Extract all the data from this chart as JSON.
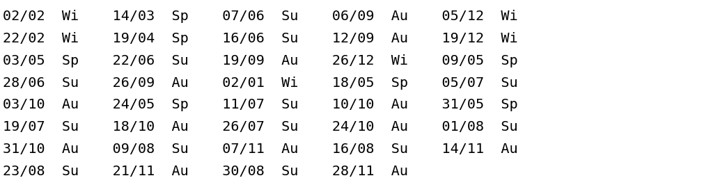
{
  "background_color": "#ffffff",
  "text_color": "#000000",
  "font_family": "monospace",
  "font_size": 14.5,
  "figsize": [
    10.11,
    2.66
  ],
  "dpi": 100,
  "rows": [
    "02/02  Wi    14/03  Sp    07/06  Su    06/09  Au    05/12  Wi",
    "22/02  Wi    19/04  Sp    16/06  Su    12/09  Au    19/12  Wi",
    "03/05  Sp    22/06  Su    19/09  Au    26/12  Wi    09/05  Sp",
    "28/06  Su    26/09  Au    02/01  Wi    18/05  Sp    05/07  Su",
    "03/10  Au    24/05  Sp    11/07  Su    10/10  Au    31/05  Sp",
    "19/07  Su    18/10  Au    26/07  Su    24/10  Au    01/08  Su",
    "31/10  Au    09/08  Su    07/11  Au    16/08  Su    14/11  Au",
    "23/08  Su    21/11  Au    30/08  Su    28/11  Au"
  ]
}
